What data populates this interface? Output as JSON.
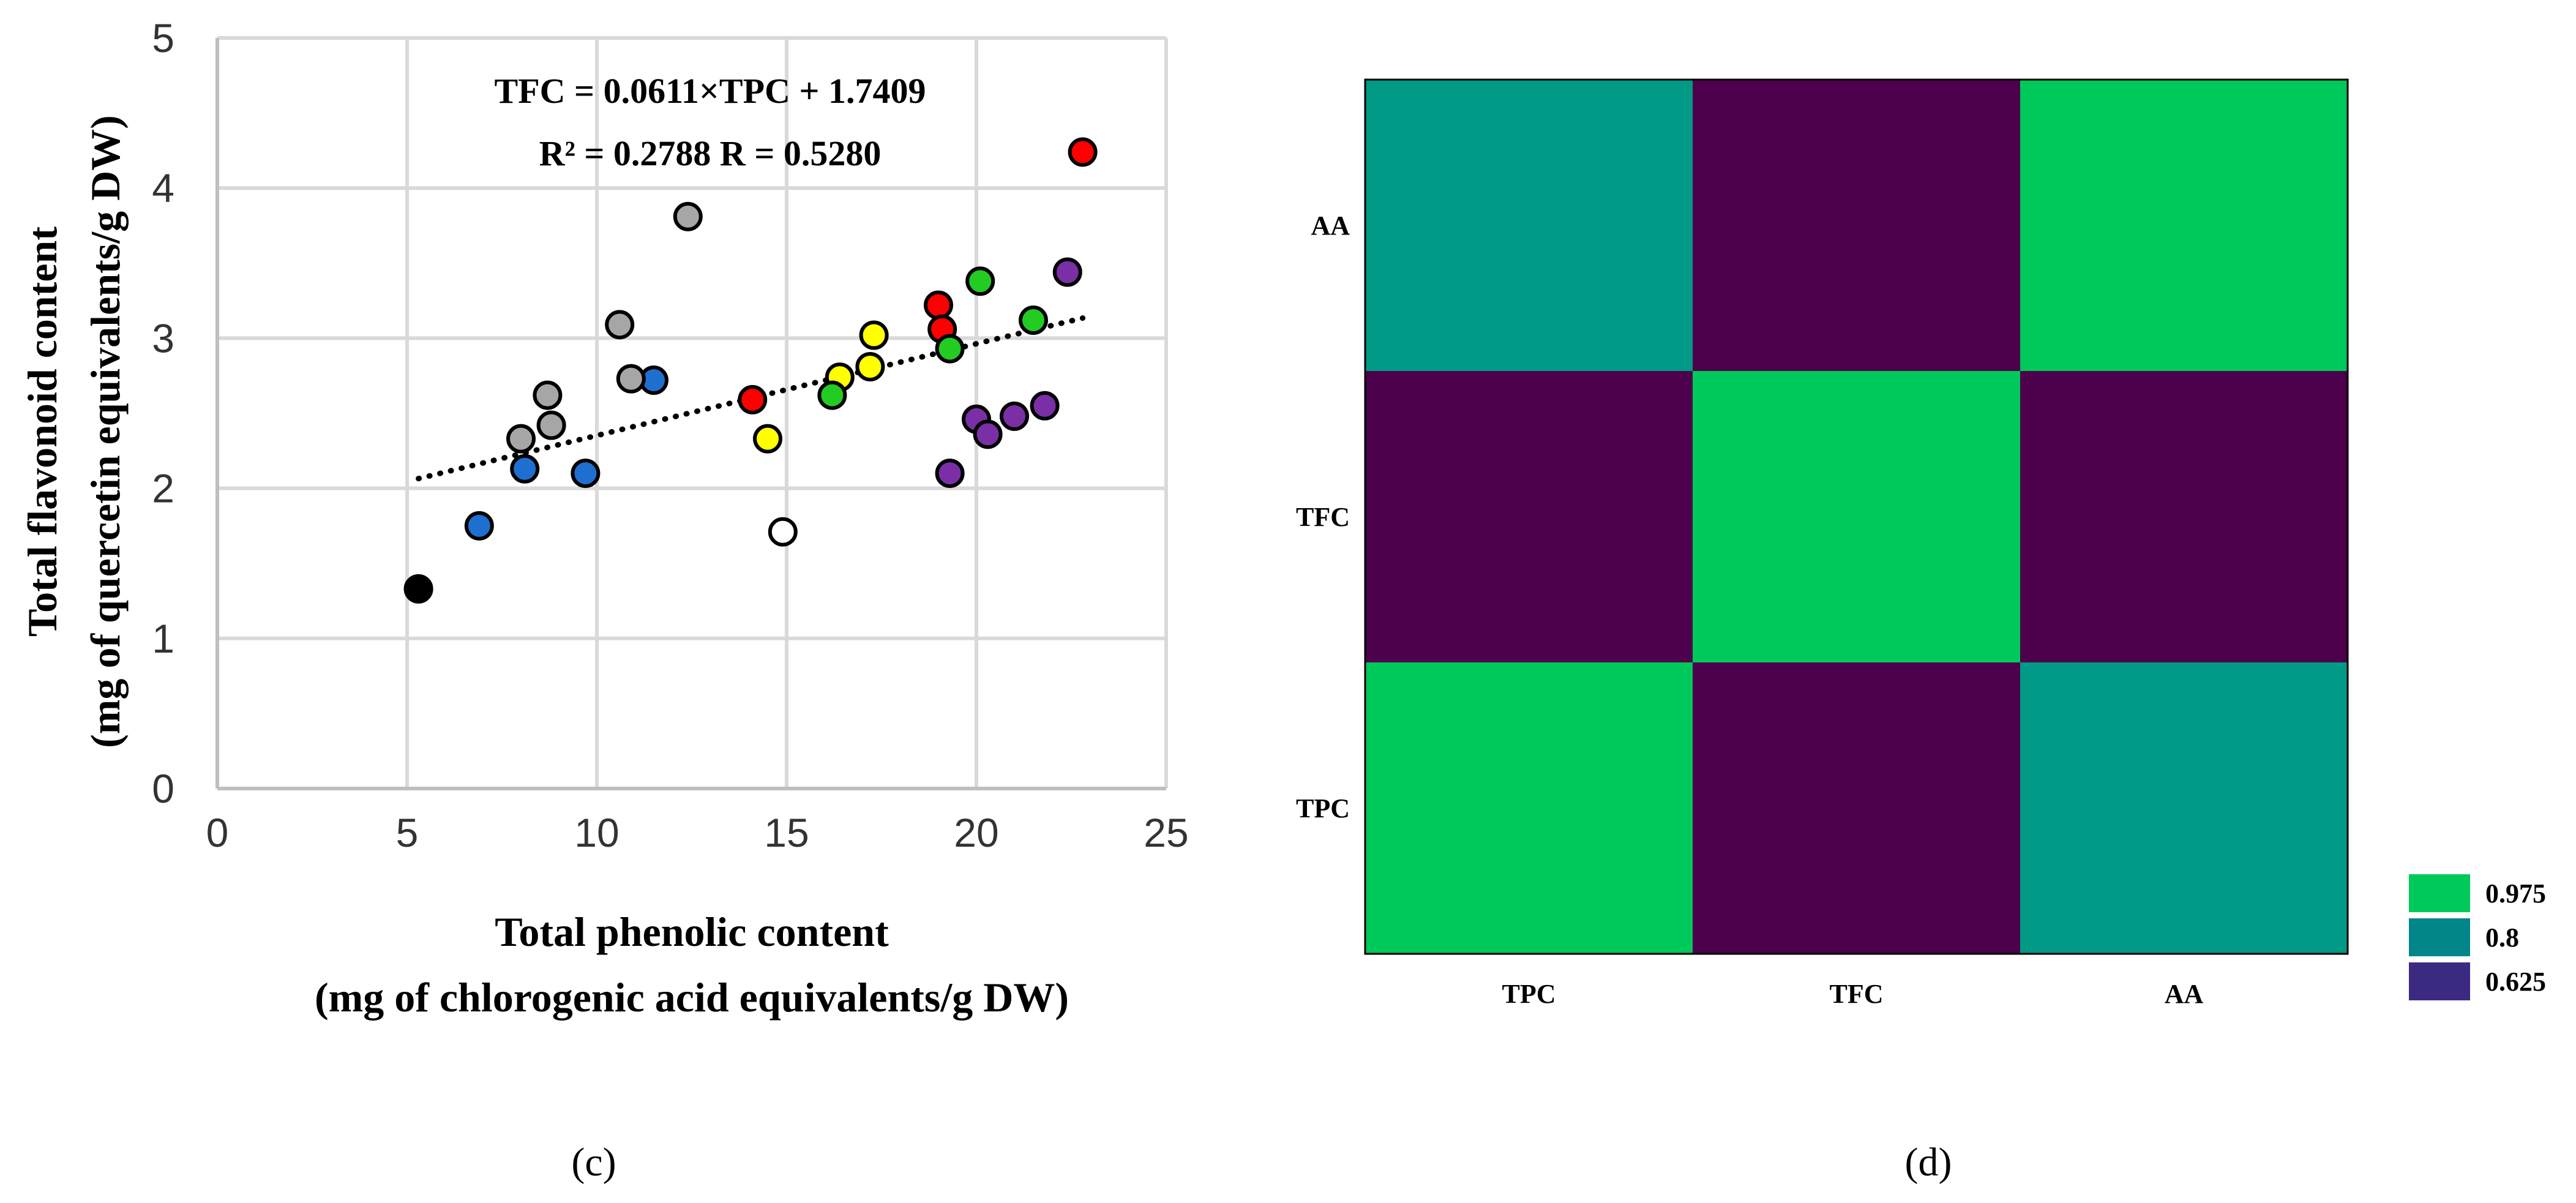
{
  "panels": {
    "scatter_label": "(c)",
    "heatmap_label": "(d)"
  },
  "chart_data": [
    {
      "type": "scatter",
      "xlabel_line1": "Total phenolic content",
      "xlabel_line2": "(mg of chlorogenic acid equivalents/g DW)",
      "ylabel_line1": "Total flavonoid content",
      "ylabel_line2": "(mg of quercetin equivalents/g DW)",
      "xlim": [
        0,
        25
      ],
      "ylim": [
        0,
        5
      ],
      "xticks": [
        0,
        5,
        10,
        15,
        20,
        25
      ],
      "yticks": [
        0,
        1,
        2,
        3,
        4,
        5
      ],
      "grid": true,
      "annotation_line1": "TFC = 0.0611×TPC + 1.7409",
      "annotation_line2": "R² = 0.2788 R = 0.5280",
      "trendline": {
        "slope": 0.0611,
        "intercept": 1.7409,
        "x_range": [
          5.3,
          22.8
        ],
        "style": "dotted"
      },
      "series": [
        {
          "color": "#000000",
          "points": [
            [
              5.3,
              1.33
            ]
          ]
        },
        {
          "color": "#ffffff",
          "points": [
            [
              14.9,
              1.71
            ]
          ]
        },
        {
          "color": "#1f6fd0",
          "points": [
            [
              6.9,
              1.75
            ],
            [
              8.1,
              2.13
            ],
            [
              9.7,
              2.1
            ],
            [
              11.5,
              2.72
            ]
          ]
        },
        {
          "color": "#a6a6a6",
          "points": [
            [
              8.0,
              2.33
            ],
            [
              8.7,
              2.62
            ],
            [
              8.8,
              2.42
            ],
            [
              10.6,
              3.09
            ],
            [
              10.9,
              2.73
            ],
            [
              12.4,
              3.81
            ]
          ]
        },
        {
          "color": "#ff0000",
          "points": [
            [
              14.1,
              2.59
            ],
            [
              19.0,
              3.22
            ],
            [
              19.1,
              3.06
            ],
            [
              22.8,
              4.24
            ]
          ]
        },
        {
          "color": "#ffff00",
          "points": [
            [
              14.5,
              2.33
            ],
            [
              16.4,
              2.74
            ],
            [
              17.2,
              2.81
            ],
            [
              17.3,
              3.02
            ]
          ]
        },
        {
          "color": "#22cc22",
          "points": [
            [
              16.2,
              2.62
            ],
            [
              19.3,
              2.93
            ],
            [
              20.1,
              3.38
            ],
            [
              21.5,
              3.12
            ]
          ]
        },
        {
          "color": "#7a2fa6",
          "points": [
            [
              19.3,
              2.1
            ],
            [
              20.0,
              2.46
            ],
            [
              20.3,
              2.36
            ],
            [
              21.0,
              2.48
            ],
            [
              21.8,
              2.55
            ],
            [
              22.4,
              3.44
            ]
          ]
        }
      ]
    },
    {
      "type": "heatmap",
      "x_categories": [
        "TPC",
        "TFC",
        "AA"
      ],
      "y_categories": [
        "TPC",
        "TFC",
        "AA"
      ],
      "values": [
        [
          1.0,
          0.528,
          0.8
        ],
        [
          0.528,
          1.0,
          0.528
        ],
        [
          0.8,
          0.528,
          1.0
        ]
      ],
      "colors": {
        "high": "#00c95b",
        "mid": "#019a87",
        "low": "#4d004b"
      },
      "legend": [
        {
          "label": "0.975",
          "color": "#00c95b"
        },
        {
          "label": "0.8",
          "color": "#02868a"
        },
        {
          "label": "0.625",
          "color": "#3c2a82"
        }
      ]
    }
  ]
}
